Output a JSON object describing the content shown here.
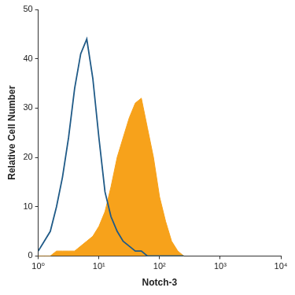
{
  "chart_data": {
    "type": "line",
    "x_label": "Notch-3",
    "y_label": "Relative Cell Number",
    "log": "x",
    "grid": false,
    "xlim": [
      1,
      10000
    ],
    "xticks": [
      {
        "value": 1,
        "label": "10⁰"
      },
      {
        "value": 10,
        "label": "10¹"
      },
      {
        "value": 100,
        "label": "10²"
      },
      {
        "value": 1000,
        "label": "10³"
      },
      {
        "value": 10000,
        "label": "10⁴"
      }
    ],
    "ylim": [
      0,
      50
    ],
    "yticks": [
      0,
      10,
      20,
      30,
      40,
      50
    ],
    "x": [
      1,
      1.26,
      1.58,
      2,
      2.51,
      3.16,
      3.98,
      5.01,
      6.31,
      7.94,
      10,
      12.6,
      15.8,
      20,
      25.1,
      31.6,
      39.8,
      50.1,
      63.1,
      79.4,
      100,
      126,
      158,
      200,
      251
    ],
    "series": [
      {
        "type": "line",
        "color": "#1f5a87",
        "values": [
          1,
          3,
          5,
          10,
          16,
          24,
          34,
          41,
          44,
          36,
          24,
          13,
          8,
          5,
          3,
          2,
          1,
          1,
          0,
          0,
          0,
          0,
          0,
          0,
          0
        ]
      },
      {
        "type": "area",
        "color": "#f7a21b",
        "values": [
          0,
          0,
          0,
          1,
          1,
          1,
          1,
          2,
          3,
          4,
          6,
          9,
          14,
          20,
          24,
          28,
          31,
          32,
          26,
          20,
          12,
          7,
          3,
          1,
          0
        ]
      }
    ]
  }
}
